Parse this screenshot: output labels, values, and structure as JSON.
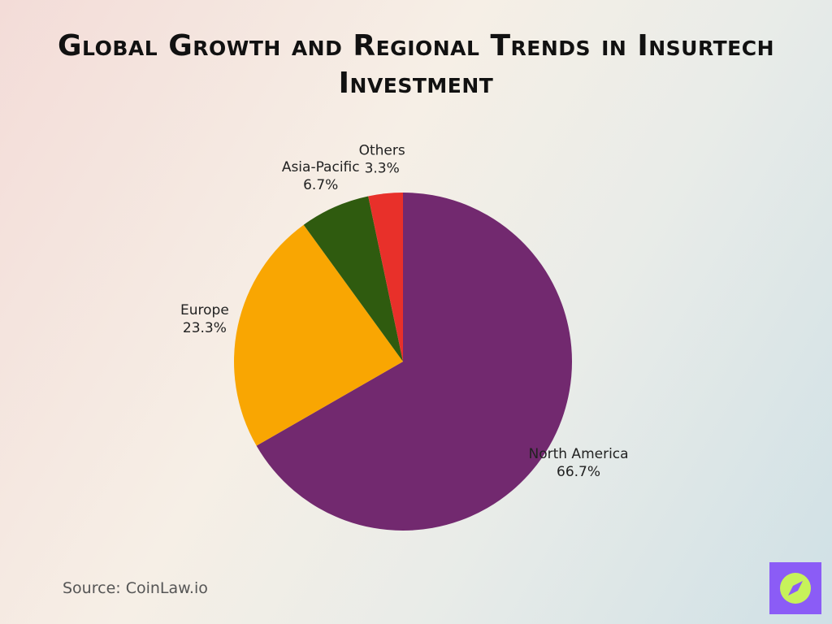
{
  "chart_data": {
    "type": "pie",
    "title": "Global Growth and Regional Trends in Insurtech Investment",
    "categories": [
      "North America",
      "Europe",
      "Asia-Pacific",
      "Others"
    ],
    "values": [
      66.7,
      23.3,
      6.7,
      3.3
    ],
    "value_labels": [
      "66.7%",
      "23.3%",
      "6.7%",
      "3.3%"
    ],
    "colors": [
      "#72296f",
      "#f9a602",
      "#2f5b0f",
      "#e8302a"
    ],
    "source": "Source: CoinLaw.io"
  }
}
